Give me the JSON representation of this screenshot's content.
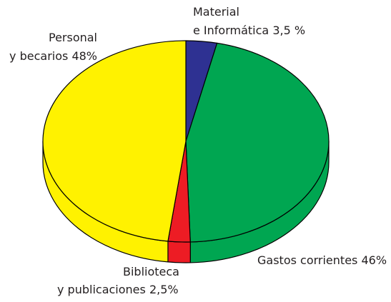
{
  "chart_data": {
    "type": "pie3d",
    "categories": [
      [
        "Material",
        "e Informática"
      ],
      [
        "Gastos corrientes"
      ],
      [
        "Biblioteca",
        "y publicaciones"
      ],
      [
        "Personal",
        "y becarios"
      ]
    ],
    "values": [
      3.5,
      46,
      2.5,
      48
    ],
    "value_labels": [
      "3,5 %",
      "46%",
      "2,5%",
      "48%"
    ],
    "colors": [
      "#2e3192",
      "#00a651",
      "#ed1c24",
      "#fff200"
    ]
  }
}
